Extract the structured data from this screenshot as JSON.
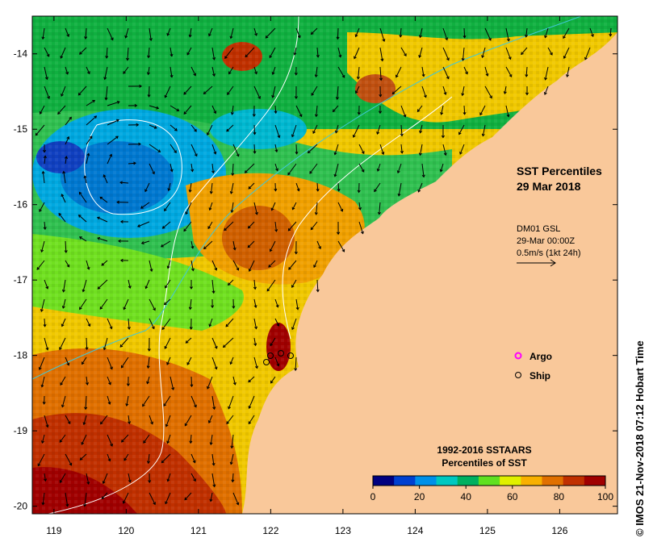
{
  "title": {
    "line1": "SST Percentiles",
    "line2": "29 Mar 2018"
  },
  "current_info": {
    "line1": "DM01 GSL",
    "line2": "29-Mar 00:00Z",
    "line3": "0.5m/s (1kt 24h)"
  },
  "legend": {
    "argo_label": "Argo",
    "ship_label": "Ship",
    "argo_color": "#ff00ff",
    "ship_color": "#000000"
  },
  "colorbar": {
    "title_line1": "1992-2016 SSTAARS",
    "title_line2": "Percentiles of SST",
    "ticks": [
      "0",
      "20",
      "40",
      "60",
      "80",
      "100"
    ],
    "colors": [
      "#000080",
      "#0040d0",
      "#0090e8",
      "#00c8c0",
      "#00b060",
      "#60e020",
      "#e0f000",
      "#f8b000",
      "#e07000",
      "#c03000",
      "#a00000"
    ]
  },
  "credit": "© IMOS 21-Nov-2018 07:12 Hobart Time",
  "axes": {
    "x_ticks": [
      "119",
      "120",
      "121",
      "122",
      "123",
      "124",
      "125",
      "126"
    ],
    "y_ticks": [
      "-14",
      "-15",
      "-16",
      "-17",
      "-18",
      "-19",
      "-20"
    ],
    "xlim": [
      118.7,
      126.8
    ],
    "ylim": [
      -20.1,
      -13.5
    ]
  },
  "colors": {
    "land": "#f9c89a",
    "contour": "#ffffff",
    "shelf_line": "#40c8d8"
  }
}
